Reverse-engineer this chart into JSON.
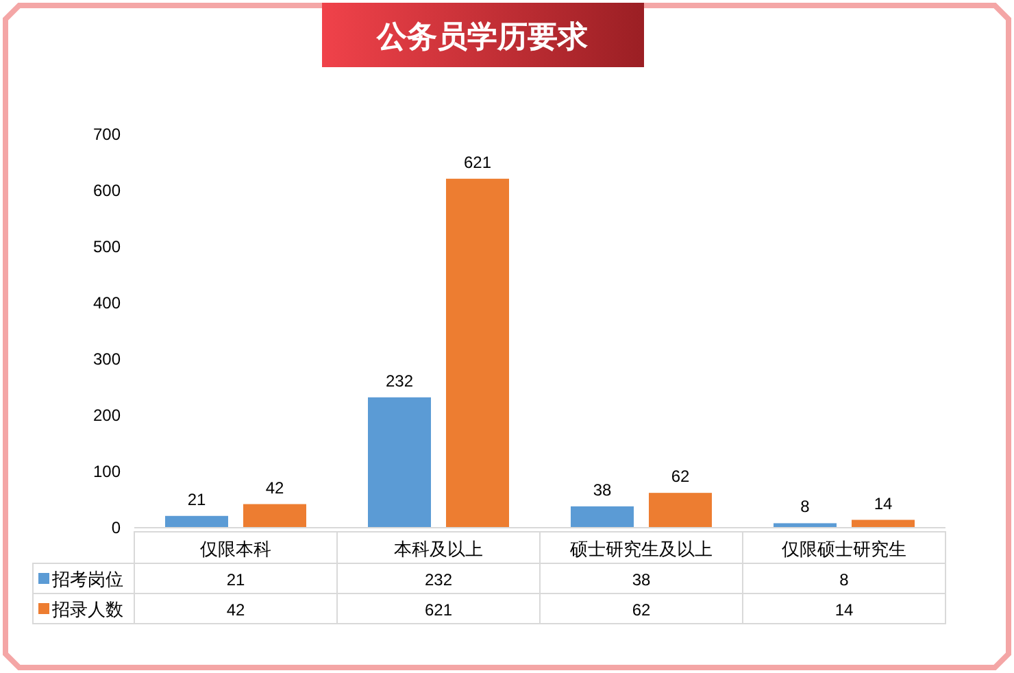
{
  "chart_data": {
    "type": "bar",
    "title": "公务员学历要求",
    "categories": [
      "仅限本科",
      "本科及以上",
      "硕士研究生及以上",
      "仅限硕士研究生"
    ],
    "series": [
      {
        "name": "招考岗位",
        "color": "#5b9bd5",
        "values": [
          21,
          232,
          38,
          8
        ],
        "value_labels": [
          "21",
          "232",
          "38",
          "8"
        ]
      },
      {
        "name": "招录人数",
        "color": "#ed7d31",
        "values": [
          42,
          621,
          62,
          14
        ],
        "value_labels": [
          "42",
          "621",
          "62",
          "14"
        ]
      }
    ],
    "ylim": [
      0,
      700
    ],
    "yticks": [
      0,
      100,
      200,
      300,
      400,
      500,
      600,
      700
    ],
    "annotations": [
      "21",
      "232",
      "38",
      "8",
      "42",
      "621",
      "62",
      "14"
    ],
    "grid": false,
    "legend": "bottom"
  }
}
